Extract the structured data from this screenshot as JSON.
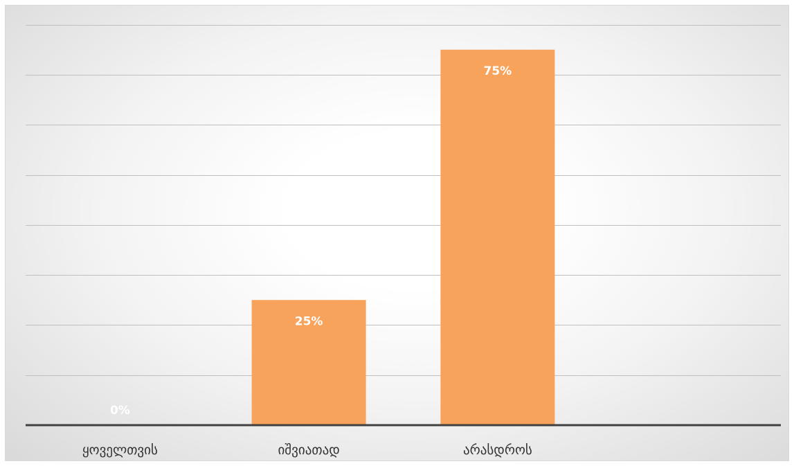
{
  "chart_data": {
    "type": "bar",
    "categories": [
      "ყოველთვის",
      "იშვიათად",
      "არასდროს"
    ],
    "values": [
      0,
      25,
      75
    ],
    "data_labels": [
      "0%",
      "25%",
      "75%"
    ],
    "title": "",
    "xlabel": "",
    "ylabel": "",
    "ylim": [
      0,
      80
    ],
    "grid": true,
    "gridlines_y": [
      10,
      20,
      30,
      40,
      50,
      60,
      70,
      80
    ],
    "bar_color": "#f7a35c",
    "label_color": "#ffffff",
    "axis_color": "#404040",
    "legend": "none"
  }
}
